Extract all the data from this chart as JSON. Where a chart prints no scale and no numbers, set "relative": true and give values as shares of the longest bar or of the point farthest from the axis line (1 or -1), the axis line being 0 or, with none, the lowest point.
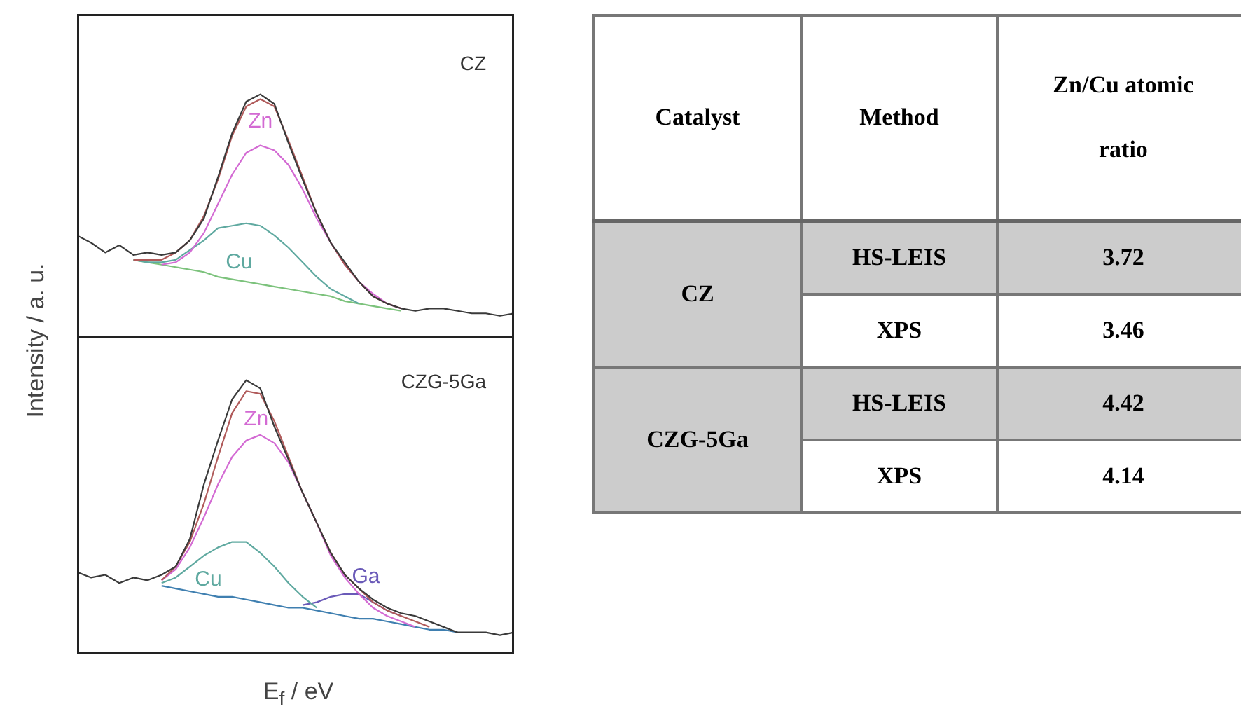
{
  "chart_data": [
    {
      "type": "line",
      "title": "CZ",
      "ylabel": "Intensity / a. u.",
      "relative": true,
      "tick_labels": false,
      "marker": "none",
      "categories": [
        null,
        null,
        null,
        null,
        null,
        null,
        null,
        null,
        null,
        null,
        null,
        null,
        null,
        null,
        null,
        null,
        null,
        null,
        null,
        null,
        null,
        null,
        null,
        null,
        null,
        null,
        null,
        null,
        null,
        null,
        null,
        null
      ],
      "series": [
        {
          "color": "#3a3a3a",
          "values": [
            0.42,
            0.39,
            0.35,
            0.38,
            0.34,
            0.35,
            0.34,
            0.35,
            0.4,
            0.49,
            0.66,
            0.84,
            0.97,
            1,
            0.96,
            0.8,
            0.65,
            0.51,
            0.39,
            0.31,
            0.23,
            0.17,
            0.14,
            0.12,
            0.11,
            0.12,
            0.12,
            0.11,
            0.1,
            0.1,
            0.09,
            0.1
          ]
        },
        {
          "color": "#b05a5a",
          "values": [
            null,
            null,
            null,
            null,
            0.32,
            0.32,
            0.32,
            0.35,
            0.4,
            0.5,
            0.65,
            0.83,
            0.95,
            0.98,
            0.95,
            0.81,
            0.66,
            0.51,
            0.39,
            0.3,
            0.23,
            0.17,
            0.14,
            0.12,
            null,
            null,
            null,
            null,
            null,
            null,
            null,
            null
          ]
        },
        {
          "name": "Zn",
          "color": "#d36ad3",
          "values": [
            null,
            null,
            null,
            null,
            null,
            null,
            0.3,
            0.31,
            0.35,
            0.43,
            0.55,
            0.67,
            0.76,
            0.79,
            0.77,
            0.71,
            0.61,
            0.49,
            0.39,
            0.3,
            0.23,
            0.18,
            0.14,
            0.12,
            null,
            null,
            null,
            null,
            null,
            null,
            null,
            null
          ]
        },
        {
          "name": "Cu",
          "color": "#5fa9a0",
          "values": [
            null,
            null,
            null,
            null,
            0.32,
            0.31,
            0.31,
            0.32,
            0.36,
            0.4,
            0.45,
            0.46,
            0.47,
            0.46,
            0.42,
            0.37,
            0.31,
            0.25,
            0.2,
            0.17,
            0.14,
            null,
            null,
            null,
            null,
            null,
            null,
            null,
            null,
            null,
            null,
            null
          ]
        },
        {
          "color": "#7cc27c",
          "values": [
            null,
            null,
            null,
            null,
            0.32,
            0.31,
            0.3,
            0.29,
            0.28,
            0.27,
            0.25,
            0.24,
            0.23,
            0.22,
            0.21,
            0.2,
            0.19,
            0.18,
            0.17,
            0.15,
            0.14,
            0.13,
            0.12,
            0.11,
            null,
            null,
            null,
            null,
            null,
            null,
            null,
            null
          ]
        }
      ]
    },
    {
      "type": "line",
      "title": "CZG-5Ga",
      "xlabel": "E$_{f}$ / eV",
      "relative": true,
      "tick_labels": false,
      "marker": "none",
      "categories": [
        null,
        null,
        null,
        null,
        null,
        null,
        null,
        null,
        null,
        null,
        null,
        null,
        null,
        null,
        null,
        null,
        null,
        null,
        null,
        null,
        null,
        null,
        null,
        null,
        null,
        null,
        null,
        null,
        null,
        null,
        null,
        null
      ],
      "series": [
        {
          "color": "#3a3a3a",
          "values": [
            0.3,
            0.28,
            0.29,
            0.26,
            0.28,
            0.27,
            0.29,
            0.32,
            0.42,
            0.62,
            0.78,
            0.93,
            1,
            0.97,
            0.83,
            0.71,
            0.59,
            0.48,
            0.37,
            0.29,
            0.24,
            0.2,
            0.17,
            0.15,
            0.14,
            0.12,
            0.1,
            0.08,
            0.08,
            0.08,
            0.07,
            0.08
          ]
        },
        {
          "color": "#b05a5a",
          "values": [
            null,
            null,
            null,
            null,
            null,
            null,
            0.27,
            0.32,
            0.41,
            0.55,
            0.72,
            0.88,
            0.96,
            0.95,
            0.85,
            0.72,
            0.59,
            0.48,
            0.37,
            0.29,
            0.24,
            0.19,
            0.16,
            0.14,
            0.12,
            0.1,
            null,
            null,
            null,
            null,
            null,
            null
          ]
        },
        {
          "name": "Zn",
          "color": "#d36ad3",
          "values": [
            null,
            null,
            null,
            null,
            null,
            null,
            0.27,
            0.31,
            0.39,
            0.5,
            0.62,
            0.72,
            0.78,
            0.8,
            0.77,
            0.7,
            0.59,
            0.48,
            0.36,
            0.28,
            0.22,
            0.17,
            0.14,
            0.12,
            0.1,
            null,
            null,
            null,
            null,
            null,
            null,
            null
          ]
        },
        {
          "name": "Cu",
          "color": "#5fa9a0",
          "values": [
            null,
            null,
            null,
            null,
            null,
            null,
            0.26,
            0.28,
            0.32,
            0.36,
            0.39,
            0.41,
            0.41,
            0.37,
            0.32,
            0.26,
            0.21,
            0.17,
            null,
            null,
            null,
            null,
            null,
            null,
            null,
            null,
            null,
            null,
            null,
            null,
            null,
            null
          ]
        },
        {
          "name": "Ga",
          "color": "#6a5ab8",
          "values": [
            null,
            null,
            null,
            null,
            null,
            null,
            null,
            null,
            null,
            null,
            null,
            null,
            null,
            null,
            null,
            null,
            0.18,
            0.19,
            0.21,
            0.22,
            0.22,
            0.19,
            0.16,
            0.14,
            null,
            null,
            null,
            null,
            null,
            null,
            null,
            null
          ]
        },
        {
          "color": "#3f7fb0",
          "values": [
            null,
            null,
            null,
            null,
            null,
            null,
            0.25,
            0.24,
            0.23,
            0.22,
            0.21,
            0.21,
            0.2,
            0.19,
            0.18,
            0.17,
            0.17,
            0.16,
            0.15,
            0.14,
            0.13,
            0.13,
            0.12,
            0.11,
            0.1,
            0.09,
            0.09,
            0.08,
            null,
            null,
            null,
            null
          ]
        }
      ]
    },
    {
      "type": "other",
      "categories": [
        "Catalyst",
        "Method",
        "Zn/Cu atomic ratio"
      ],
      "cell_labels": [
        [
          "CZ",
          "HS-LEIS",
          "3.72"
        ],
        [
          null,
          "XPS",
          "3.46"
        ],
        [
          "CZG-5Ga",
          "HS-LEIS",
          "4.42"
        ],
        [
          null,
          "XPS",
          "4.14"
        ]
      ]
    }
  ]
}
